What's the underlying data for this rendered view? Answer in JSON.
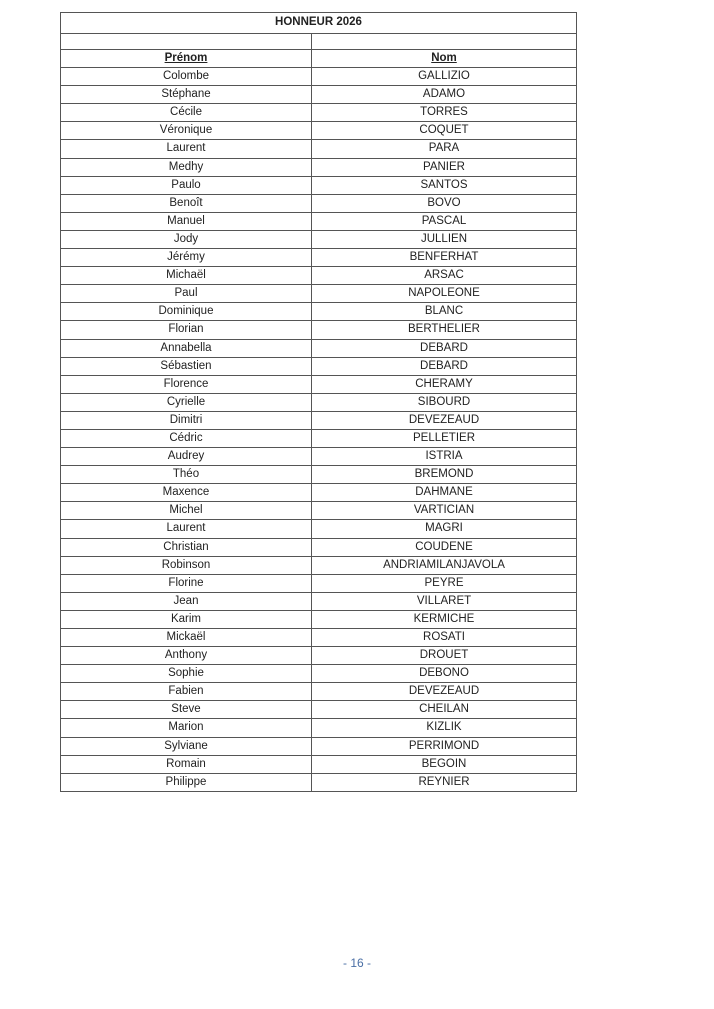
{
  "document": {
    "title": "HONNEUR 2026",
    "columns": [
      "Prénom",
      "Nom"
    ],
    "rows": [
      [
        "Colombe",
        "GALLIZIO"
      ],
      [
        "Stéphane",
        "ADAMO"
      ],
      [
        "Cécile",
        "TORRES"
      ],
      [
        "Véronique",
        "COQUET"
      ],
      [
        "Laurent",
        "PARA"
      ],
      [
        "Medhy",
        "PANIER"
      ],
      [
        "Paulo",
        "SANTOS"
      ],
      [
        "Benoît",
        "BOVO"
      ],
      [
        "Manuel",
        "PASCAL"
      ],
      [
        "Jody",
        "JULLIEN"
      ],
      [
        "Jérémy",
        "BENFERHAT"
      ],
      [
        "Michaël",
        "ARSAC"
      ],
      [
        "Paul",
        "NAPOLEONE"
      ],
      [
        "Dominique",
        "BLANC"
      ],
      [
        "Florian",
        "BERTHELIER"
      ],
      [
        "Annabella",
        "DEBARD"
      ],
      [
        "Sébastien",
        "DEBARD"
      ],
      [
        "Florence",
        "CHERAMY"
      ],
      [
        "Cyrielle",
        "SIBOURD"
      ],
      [
        "Dimitri",
        "DEVEZEAUD"
      ],
      [
        "Cédric",
        "PELLETIER"
      ],
      [
        "Audrey",
        "ISTRIA"
      ],
      [
        "Théo",
        "BREMOND"
      ],
      [
        "Maxence",
        "DAHMANE"
      ],
      [
        "Michel",
        "VARTICIAN"
      ],
      [
        "Laurent",
        "MAGRI"
      ],
      [
        "Christian",
        "COUDENE"
      ],
      [
        "Robinson",
        "ANDRIAMILANJAVOLA"
      ],
      [
        "Florine",
        "PEYRE"
      ],
      [
        "Jean",
        "VILLARET"
      ],
      [
        "Karim",
        "KERMICHE"
      ],
      [
        "Mickaël",
        "ROSATI"
      ],
      [
        "Anthony",
        "DROUET"
      ],
      [
        "Sophie",
        "DEBONO"
      ],
      [
        "Fabien",
        "DEVEZEAUD"
      ],
      [
        "Steve",
        "CHEILAN"
      ],
      [
        "Marion",
        "KIZLIK"
      ],
      [
        "Sylviane",
        "PERRIMOND"
      ],
      [
        "Romain",
        "BEGOIN"
      ],
      [
        "Philippe",
        "REYNIER"
      ]
    ],
    "page_number": "- 16 -"
  }
}
